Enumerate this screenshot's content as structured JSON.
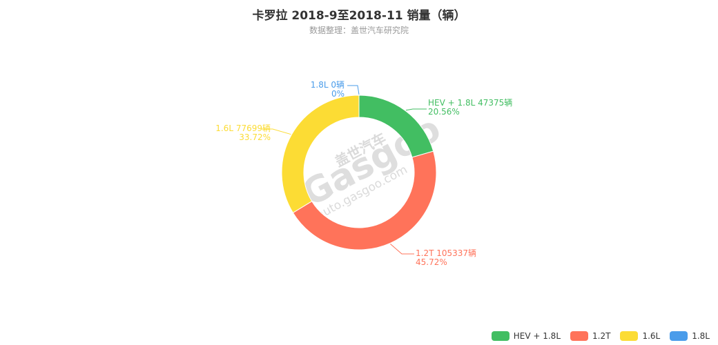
{
  "title": "卡罗拉 2018-9至2018-11 销量（辆）",
  "subtitle": "数据整理：盖世汽车研究院",
  "watermark": {
    "cn": "盖世汽车",
    "logo": "Gasgoo",
    "url": "auto.gasgoo.com"
  },
  "chart_data": {
    "type": "pie",
    "variant": "donut",
    "title": "卡罗拉 2018-9至2018-11 销量（辆）",
    "subtitle": "数据整理：盖世汽车研究院",
    "unit": "辆",
    "legend_position": "bottom-right",
    "slices": [
      {
        "name": "HEV + 1.8L",
        "value": 47375,
        "percent": "20.56%",
        "label": "HEV + 1.8L 47375辆",
        "color": "#42be62"
      },
      {
        "name": "1.2T",
        "value": 105337,
        "percent": "45.72%",
        "label": "1.2T 105337辆",
        "color": "#ff735a"
      },
      {
        "name": "1.6L",
        "value": 77699,
        "percent": "33.72%",
        "label": "1.6L 77699辆",
        "color": "#fcdc34"
      },
      {
        "name": "1.8L",
        "value": 0,
        "percent": "0%",
        "label": "1.8L 0辆",
        "color": "#4a9cea"
      }
    ]
  }
}
